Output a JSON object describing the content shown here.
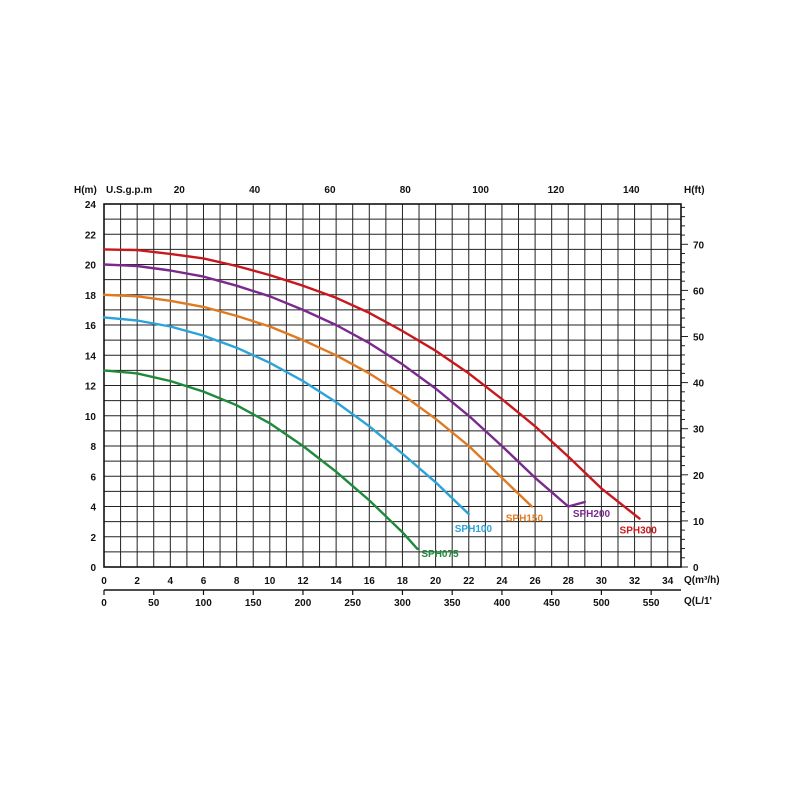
{
  "chart_data": {
    "type": "line",
    "axes": {
      "left": {
        "label": "H(m)",
        "ticks": [
          "0",
          "2",
          "4",
          "6",
          "8",
          "10",
          "12",
          "14",
          "16",
          "18",
          "20",
          "22",
          "24"
        ],
        "range": [
          0,
          24
        ]
      },
      "right": {
        "label": "H(ft)",
        "ticks": [
          "0",
          "10",
          "20",
          "30",
          "40",
          "50",
          "60",
          "70"
        ],
        "range": [
          0,
          78.74
        ]
      },
      "bottom_primary": {
        "label": "Q(m³/h)",
        "ticks": [
          "0",
          "2",
          "4",
          "6",
          "8",
          "10",
          "12",
          "14",
          "16",
          "18",
          "20",
          "22",
          "24",
          "26",
          "28",
          "30",
          "32",
          "34"
        ],
        "range": [
          0,
          34.8
        ]
      },
      "bottom_secondary": {
        "label": "Q(L/1'",
        "ticks": [
          "0",
          "50",
          "100",
          "150",
          "200",
          "250",
          "300",
          "350",
          "400",
          "450",
          "500",
          "550"
        ],
        "range": [
          0,
          580
        ]
      },
      "top": {
        "label": "U.S.g.p.m",
        "ticks": [
          "20",
          "40",
          "60",
          "80",
          "100",
          "120",
          "140"
        ],
        "range": [
          0,
          153.2
        ]
      }
    },
    "grid": true,
    "series": [
      {
        "name": "SPH075",
        "color": "#1e8a3c",
        "x": [
          0,
          2,
          4,
          6,
          8,
          10,
          12,
          14,
          16,
          18,
          18.9
        ],
        "y": [
          13.0,
          12.8,
          12.3,
          11.6,
          10.7,
          9.5,
          8.0,
          6.3,
          4.4,
          2.3,
          1.2
        ]
      },
      {
        "name": "SPH100",
        "color": "#2ba3d8",
        "x": [
          0,
          2,
          4,
          6,
          8,
          10,
          12,
          14,
          16,
          18,
          20,
          22
        ],
        "y": [
          16.5,
          16.3,
          15.9,
          15.3,
          14.5,
          13.5,
          12.3,
          10.9,
          9.3,
          7.5,
          5.6,
          3.5
        ]
      },
      {
        "name": "SPH150",
        "color": "#e07a22",
        "x": [
          0,
          2,
          4,
          6,
          8,
          10,
          12,
          14,
          16,
          18,
          20,
          22,
          24,
          25.8
        ],
        "y": [
          18.0,
          17.9,
          17.6,
          17.2,
          16.6,
          15.9,
          15.0,
          14.0,
          12.8,
          11.4,
          9.8,
          8.0,
          5.9,
          4.0
        ]
      },
      {
        "name": "SPH200",
        "color": "#7a2a8c",
        "x": [
          0,
          2,
          4,
          6,
          8,
          10,
          12,
          14,
          16,
          18,
          20,
          22,
          24,
          26,
          28,
          29
        ],
        "y": [
          20.0,
          19.9,
          19.6,
          19.2,
          18.6,
          17.9,
          17.0,
          16.0,
          14.8,
          13.4,
          11.8,
          10.0,
          8.0,
          5.9,
          4.0,
          4.3
        ]
      },
      {
        "name": "SPH300",
        "color": "#c8181e",
        "x": [
          0,
          2,
          4,
          6,
          8,
          10,
          12,
          14,
          16,
          18,
          20,
          22,
          24,
          26,
          28,
          30,
          32.3
        ],
        "y": [
          21.0,
          20.95,
          20.7,
          20.4,
          19.9,
          19.3,
          18.6,
          17.8,
          16.8,
          15.6,
          14.3,
          12.8,
          11.1,
          9.3,
          7.3,
          5.2,
          3.2
        ]
      }
    ]
  }
}
